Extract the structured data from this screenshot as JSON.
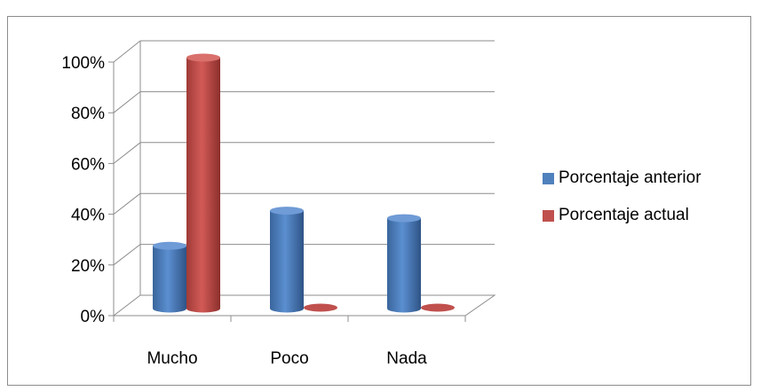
{
  "chart_data": {
    "type": "bar",
    "title": "",
    "categories": [
      "Mucho",
      "Poco",
      "Nada"
    ],
    "series": [
      {
        "name": "Porcentaje anterior",
        "color": "#4f81bd",
        "values": [
          25,
          39,
          36
        ]
      },
      {
        "name": "Porcentaje actual",
        "color": "#c0504d",
        "values": [
          100,
          0,
          0
        ]
      }
    ],
    "y_ticks": [
      "0%",
      "20%",
      "40%",
      "60%",
      "80%",
      "100%"
    ],
    "ylim": [
      0,
      100
    ],
    "unit": "%",
    "grid": true,
    "legend_position": "right"
  }
}
